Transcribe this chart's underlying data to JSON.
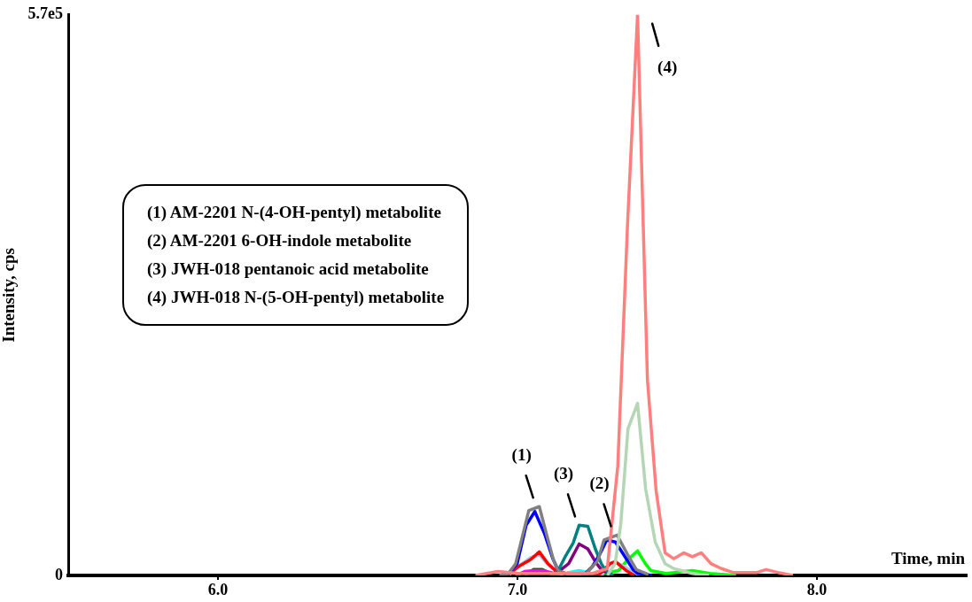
{
  "chart_data": {
    "type": "line",
    "xlabel": "Time, min",
    "ylabel": "Intensity, cps",
    "xlim": [
      5.5,
      8.5
    ],
    "xticks": [
      {
        "value": 6,
        "label": "6.0"
      },
      {
        "value": 7,
        "label": "7.0"
      },
      {
        "value": 8,
        "label": "8.0"
      }
    ],
    "ylim": [
      0,
      570000
    ],
    "yticks": [
      0,
      {
        "value": 570000,
        "label": "5.7e5"
      }
    ],
    "grid": false,
    "legend": false,
    "line_style": "solid",
    "annotations": [
      "(1) AM-2201 N-(4-OH-pentyl) metabolite",
      "(2) AM-2201 6-OH-indole metabolite",
      "(3) JWH-018 pentanoic acid metabolite",
      "(4) JWH-018 N-(5-OH-pentyl) metabolite",
      {
        "text": "(1)",
        "x": 7.07,
        "y": 70000
      },
      {
        "text": "(3)",
        "x": 7.21,
        "y": 51000
      },
      {
        "text": "(2)",
        "x": 7.33,
        "y": 41000
      },
      {
        "text": "(4)",
        "x": 7.4,
        "y": 570000
      }
    ],
    "series": [
      {
        "color": "#b5d6b5",
        "x": [
          7.3,
          7.326,
          7.345,
          7.369,
          7.401,
          7.428,
          7.46,
          7.493,
          7.522,
          7.584,
          7.64
        ],
        "values": [
          0,
          12000,
          52000,
          149000,
          175000,
          88000,
          34000,
          12000,
          7000,
          2000,
          0
        ]
      },
      {
        "color": "#ff7f7f",
        "x": [
          6.86,
          6.935,
          7.0,
          7.25,
          7.3,
          7.335,
          7.368,
          7.401,
          7.434,
          7.463,
          7.493,
          7.522,
          7.555,
          7.584,
          7.614,
          7.646,
          7.681,
          7.72,
          7.8,
          7.83,
          7.87,
          7.92
        ],
        "values": [
          0,
          4000,
          2000,
          2000,
          7000,
          111000,
          360000,
          570000,
          199000,
          86000,
          23000,
          17000,
          23000,
          19000,
          23000,
          12000,
          7000,
          3000,
          3000,
          6000,
          3000,
          0
        ]
      },
      {
        "color": "#808080",
        "x": [
          6.94,
          6.97,
          6.994,
          7.038,
          7.073,
          7.097,
          7.121,
          7.136,
          7.171,
          7.23,
          7.268,
          7.289,
          7.333,
          7.368,
          7.397,
          7.437
        ],
        "values": [
          0,
          2000,
          12000,
          66000,
          70000,
          42000,
          15000,
          5000,
          1000,
          2000,
          15000,
          36000,
          41000,
          21000,
          6000,
          1000
        ]
      },
      {
        "color": "#0000ff",
        "x": [
          6.94,
          6.97,
          6.999,
          7.029,
          7.058,
          7.091,
          7.117,
          7.136,
          7.171,
          7.22,
          7.25,
          7.274,
          7.298,
          7.327,
          7.357,
          7.386,
          7.401,
          7.45
        ],
        "values": [
          0,
          2000,
          12000,
          51000,
          65000,
          42000,
          18000,
          5000,
          0,
          0,
          9000,
          21000,
          36000,
          34000,
          20000,
          6000,
          2000,
          0
        ]
      },
      {
        "color": "#008080",
        "x": [
          7.11,
          7.136,
          7.161,
          7.186,
          7.206,
          7.235,
          7.26,
          7.28,
          7.294,
          7.32
        ],
        "values": [
          0,
          5000,
          20000,
          33000,
          51000,
          50000,
          27000,
          12000,
          5000,
          0
        ]
      },
      {
        "color": "#800080",
        "x": [
          7.112,
          7.142,
          7.171,
          7.206,
          7.235,
          7.26,
          7.28,
          7.313
        ],
        "values": [
          0,
          5000,
          12000,
          32000,
          27000,
          14000,
          6000,
          0
        ]
      },
      {
        "color": "#ff0000",
        "x": [
          6.965,
          7.003,
          7.043,
          7.073,
          7.102,
          7.127,
          7.171,
          7.27,
          7.309,
          7.327,
          7.363,
          7.39
        ],
        "values": [
          0,
          9000,
          16000,
          24000,
          12000,
          5000,
          0,
          0,
          12000,
          14000,
          5000,
          0
        ]
      },
      {
        "color": "#a6c8ec",
        "x": [
          6.97,
          7.003,
          7.043,
          7.073,
          7.102,
          7.127,
          7.171,
          7.28,
          7.309,
          7.327,
          7.357,
          7.378,
          7.41
        ],
        "values": [
          0,
          9000,
          18000,
          21000,
          11000,
          5000,
          0,
          0,
          12000,
          14000,
          9000,
          5000,
          0
        ]
      },
      {
        "color": "#00ff00",
        "x": [
          7.27,
          7.298,
          7.338,
          7.368,
          7.401,
          7.427,
          7.445,
          7.496,
          7.584,
          7.643,
          7.73
        ],
        "values": [
          0,
          3000,
          5000,
          16000,
          25000,
          12000,
          5000,
          2000,
          5000,
          2000,
          0
        ]
      },
      {
        "color": "#00ffff",
        "x": [
          7.142,
          7.171,
          7.206,
          7.235,
          7.265
        ],
        "values": [
          0,
          3000,
          5000,
          3000,
          0
        ]
      },
      {
        "color": "#ff00ff",
        "x": [
          6.994,
          7.024,
          7.053,
          7.083,
          7.112,
          7.142
        ],
        "values": [
          0,
          4000,
          5000,
          5000,
          3000,
          0
        ]
      },
      {
        "color": "#006400",
        "x": [
          7.024,
          7.053,
          7.083,
          7.127
        ],
        "values": [
          0,
          6000,
          6000,
          0
        ]
      }
    ]
  }
}
